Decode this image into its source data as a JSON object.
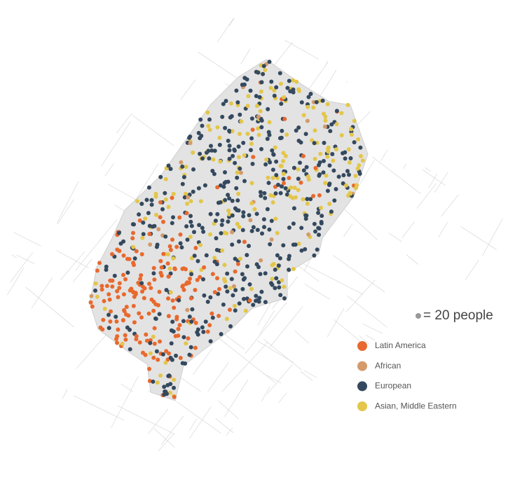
{
  "scale_note": "= 20 people",
  "legend": [
    {
      "label": "Latin America",
      "color": "#e8692e"
    },
    {
      "label": "African",
      "color": "#d49a6a"
    },
    {
      "label": "European",
      "color": "#34495e"
    },
    {
      "label": "Asian, Middle Eastern",
      "color": "#e3c64a"
    }
  ]
}
